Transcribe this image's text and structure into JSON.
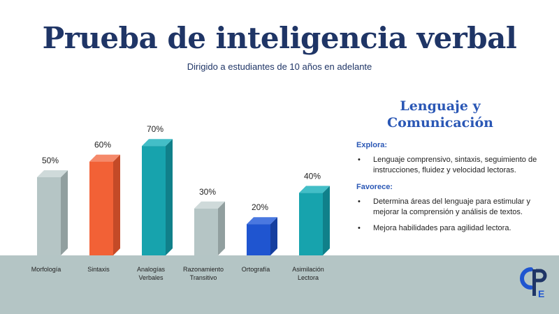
{
  "title": "Prueba de inteligencia verbal",
  "subtitle": "Dirigido a estudiantes de 10 años en adelante",
  "panel": {
    "title_line1": "Lenguaje y",
    "title_line2": "Comunicación",
    "explora_label": "Explora:",
    "explora_items": [
      "Lenguaje comprensivo, sintaxis, seguimiento de instrucciones, fluidez y velocidad lectoras."
    ],
    "favorece_label": "Favorece:",
    "favorece_items": [
      "Determina áreas del lenguaje para estimular y mejorar la comprensión y análisis de textos.",
      "Mejora habilidades para agilidad lectora."
    ]
  },
  "logo": {
    "text": "CPE",
    "icon": "cpe-logo-icon"
  },
  "colors": {
    "navy": "#1f3566",
    "accent_blue": "#2a57b5",
    "floor": "#b4c5c5"
  },
  "chart_data": {
    "type": "bar",
    "title": "Prueba de inteligencia verbal",
    "categories": [
      [
        "Morfología"
      ],
      [
        "Sintaxis"
      ],
      [
        "Analogías",
        "Verbales"
      ],
      [
        "Razonamiento",
        "Transitivo"
      ],
      [
        "Ortografía"
      ],
      [
        "Asimilación",
        "Lectora"
      ]
    ],
    "values": [
      50,
      60,
      70,
      30,
      20,
      40
    ],
    "value_labels": [
      "50%",
      "60%",
      "70%",
      "30%",
      "20%",
      "40%"
    ],
    "bar_colors": [
      {
        "front": "#b5c5c5",
        "side": "#919f9f",
        "top": "#cfdada"
      },
      {
        "front": "#f26136",
        "side": "#c44a27",
        "top": "#f5896a"
      },
      {
        "front": "#17a3ad",
        "side": "#10808a",
        "top": "#43bec7"
      },
      {
        "front": "#b5c5c5",
        "side": "#919f9f",
        "top": "#cfdada"
      },
      {
        "front": "#1f55d0",
        "side": "#163f9f",
        "top": "#4a78e0"
      },
      {
        "front": "#17a3ad",
        "side": "#10808a",
        "top": "#43bec7"
      }
    ],
    "ylim": [
      0,
      100
    ],
    "xlabel": "",
    "ylabel": ""
  }
}
